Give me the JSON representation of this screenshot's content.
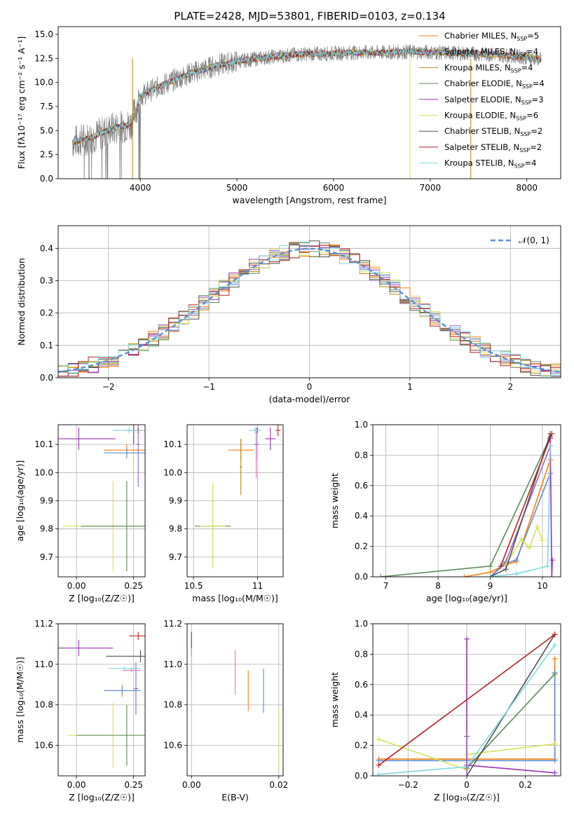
{
  "figure_title": "PLATE=2428, MJD=53801, FIBERID=0103, z=0.134",
  "models": [
    {
      "label": "Chabrier MILES, N",
      "sub": "SSP",
      "n": "=5",
      "color": "#ff7f0e"
    },
    {
      "label": "Salpeter MILES, N",
      "sub": "SSP",
      "n": "=4",
      "color": "#9467bd"
    },
    {
      "label": "Kroupa MILES, N",
      "sub": "SSP",
      "n": "=4",
      "color": "#b8860b"
    },
    {
      "label": "Chabrier ELODIE, N",
      "sub": "SSP",
      "n": "=4",
      "color": "#5a8a5a"
    },
    {
      "label": "Salpeter ELODIE, N",
      "sub": "SSP",
      "n": "=3",
      "color": "#9b30b0"
    },
    {
      "label": "Kroupa ELODIE, N",
      "sub": "SSP",
      "n": "=6",
      "color": "#d4e157"
    },
    {
      "label": "Chabrier STELIB, N",
      "sub": "SSP",
      "n": "=2",
      "color": "#505050"
    },
    {
      "label": "Salpeter STELIB, N",
      "sub": "SSP",
      "n": "=2",
      "color": "#b22222"
    },
    {
      "label": "Kroupa STELIB, N",
      "sub": "SSP",
      "n": "=4",
      "color": "#7fd8e0"
    }
  ],
  "chart_data": [
    {
      "id": "spectrum",
      "type": "line",
      "xlabel": "wavelength [Angstrom, rest frame]",
      "ylabel": "Flux [fλ10⁻¹⁷ erg cm⁻² s⁻¹ A⁻¹]",
      "xlim": [
        3150,
        8350
      ],
      "ylim": [
        0,
        15.8
      ],
      "xticks": [
        4000,
        5000,
        6000,
        7000,
        8000
      ],
      "yticks": [
        0.0,
        2.5,
        5.0,
        7.5,
        10.0,
        12.5,
        15.0
      ],
      "grid": false,
      "legend": "top-right",
      "data_x_range": [
        3300,
        8150
      ],
      "continuum": {
        "x": [
          3300,
          3500,
          3700,
          3900,
          4000,
          4200,
          4500,
          4800,
          5000,
          5300,
          5600,
          5900,
          6200,
          6500,
          6800,
          7100,
          7400,
          7700,
          8000,
          8150
        ],
        "y": [
          3.8,
          4.3,
          5.2,
          5.6,
          8.6,
          9.6,
          10.9,
          11.8,
          12.2,
          12.6,
          12.9,
          13.0,
          13.1,
          13.1,
          13.2,
          13.1,
          13.0,
          12.9,
          12.6,
          12.4
        ]
      }
    },
    {
      "id": "residuals",
      "type": "histogram",
      "xlabel": "(data-model)/error",
      "ylabel": "Normed distribution",
      "xlim": [
        -2.5,
        2.5
      ],
      "ylim": [
        0,
        0.47
      ],
      "xticks": [
        -2,
        -1,
        0,
        1,
        2
      ],
      "yticks": [
        0.0,
        0.1,
        0.2,
        0.3,
        0.4
      ],
      "grid": true,
      "legend": "top-right",
      "reference_label": "𝒩(0, 1)",
      "reference_color": "#5b8fd0",
      "bin_width": 0.1
    },
    {
      "id": "age_vs_Z",
      "type": "errorbar",
      "xlabel": "Z [log₁₀(Z/Z☉)]",
      "ylabel": "age  [log₁₀(age/yr)]",
      "xlim": [
        -0.08,
        0.3
      ],
      "ylim": [
        9.63,
        10.17
      ],
      "xticks": [
        0.0,
        0.25
      ],
      "xticklabels": [
        "0.00",
        "0.25"
      ],
      "yticks": [
        9.7,
        9.8,
        9.9,
        10.0,
        10.1
      ],
      "grid": true,
      "points": [
        {
          "x": 0.22,
          "y": 10.08,
          "xerr": 0.1,
          "yerr": 0.02,
          "color": "#ff7f0e"
        },
        {
          "x": 0.27,
          "y": 10.1,
          "xerr": 0.01,
          "yerr": 0.15,
          "color": "#9467bd"
        },
        {
          "x": 0.22,
          "y": 10.07,
          "xerr": 0.1,
          "yerr": 0.02,
          "color": "#5b8fd0"
        },
        {
          "x": 0.16,
          "y": 9.81,
          "xerr": 0.22,
          "yerr": 0.16,
          "color": "#d4e157"
        },
        {
          "x": 0.22,
          "y": 9.81,
          "xerr": 0.2,
          "yerr": 0.16,
          "color": "#5a8a5a"
        },
        {
          "x": 0.01,
          "y": 10.12,
          "xerr": 0.16,
          "yerr": 0.04,
          "color": "#9b30b0"
        },
        {
          "x": 0.25,
          "y": 10.15,
          "xerr": 0.04,
          "yerr": 0.05,
          "color": "#505050"
        },
        {
          "x": 0.27,
          "y": 10.15,
          "xerr": 0.04,
          "yerr": 0.01,
          "color": "#b22222"
        },
        {
          "x": 0.23,
          "y": 10.15,
          "xerr": 0.07,
          "yerr": 0.01,
          "color": "#7fd8e0"
        }
      ]
    },
    {
      "id": "age_vs_mass",
      "type": "errorbar",
      "xlabel": "mass [log₁₀(M/M☉)]",
      "ylabel": "",
      "xlim": [
        10.45,
        11.2
      ],
      "ylim": [
        9.63,
        10.17
      ],
      "xticks": [
        10.5,
        11.0
      ],
      "yticks": [
        9.7,
        9.8,
        9.9,
        10.0,
        10.1
      ],
      "grid": true,
      "points": [
        {
          "x": 10.87,
          "y": 10.08,
          "xerr": 0.1,
          "yerr": 0.04,
          "color": "#ff7f0e"
        },
        {
          "x": 10.99,
          "y": 10.1,
          "xerr": 0.02,
          "yerr": 0.06,
          "color": "#9467bd"
        },
        {
          "x": 10.87,
          "y": 10.02,
          "xerr": 0.01,
          "yerr": 0.1,
          "color": "#b8860b"
        },
        {
          "x": 10.65,
          "y": 9.81,
          "xerr": 0.14,
          "yerr": 0.15,
          "color": "#5a8a5a"
        },
        {
          "x": 11.1,
          "y": 10.12,
          "xerr": 0.04,
          "yerr": 0.04,
          "color": "#9b30b0"
        },
        {
          "x": 10.65,
          "y": 9.81,
          "xerr": 0.1,
          "yerr": 0.15,
          "color": "#d4e157"
        },
        {
          "x": 11.0,
          "y": 10.15,
          "xerr": 0.02,
          "yerr": 0.01,
          "color": "#505050"
        },
        {
          "x": 11.16,
          "y": 10.15,
          "xerr": 0.02,
          "yerr": 0.02,
          "color": "#b22222"
        },
        {
          "x": 10.98,
          "y": 10.15,
          "xerr": 0.05,
          "yerr": 0.01,
          "color": "#7fd8e0"
        },
        {
          "x": 10.99,
          "y": 10.04,
          "xerr": 0.0,
          "yerr": 0.06,
          "color": "#e377c2"
        }
      ]
    },
    {
      "id": "weight_vs_age",
      "type": "line",
      "xlabel": "age  [log₁₀(age/yr)]",
      "ylabel": "mass weight",
      "xlim": [
        6.75,
        10.35
      ],
      "ylim": [
        0,
        1.0
      ],
      "xticks": [
        7,
        8,
        9,
        10
      ],
      "yticks": [
        0.0,
        0.2,
        0.4,
        0.6,
        0.8,
        1.0
      ],
      "grid": true,
      "series": [
        {
          "color": "#ff7f0e",
          "x": [
            8.5,
            9.0,
            9.3,
            9.5,
            10.15
          ],
          "y": [
            0.0,
            0.03,
            0.08,
            0.1,
            0.77
          ]
        },
        {
          "color": "#9467bd",
          "x": [
            9.0,
            9.3,
            10.15
          ],
          "y": [
            0.0,
            0.1,
            0.86
          ]
        },
        {
          "color": "#5b8fd0",
          "x": [
            9.0,
            9.3,
            9.5,
            10.15
          ],
          "y": [
            0.0,
            0.09,
            0.11,
            0.68
          ]
        },
        {
          "color": "#d4e157",
          "x": [
            9.3,
            9.6,
            9.75,
            9.9,
            10.0
          ],
          "y": [
            0.08,
            0.25,
            0.19,
            0.33,
            0.24
          ]
        },
        {
          "color": "#5a8a5a",
          "x": [
            6.9,
            9.0,
            10.15
          ],
          "y": [
            0.0,
            0.07,
            0.92
          ]
        },
        {
          "color": "#9b30b0",
          "x": [
            10.15,
            10.18,
            10.19
          ],
          "y": [
            0.91,
            0.0,
            0.11
          ]
        },
        {
          "color": "#505050",
          "x": [
            9.0,
            9.3,
            10.15
          ],
          "y": [
            0.0,
            0.05,
            0.94
          ]
        },
        {
          "color": "#b22222",
          "x": [
            9.2,
            10.18
          ],
          "y": [
            0.07,
            0.94
          ]
        },
        {
          "color": "#7fd8e0",
          "x": [
            9.0,
            9.5,
            10.1,
            10.15
          ],
          "y": [
            0.0,
            0.02,
            0.07,
            0.86
          ]
        }
      ]
    },
    {
      "id": "mass_vs_Z",
      "type": "errorbar",
      "xlabel": "Z [log₁₀(Z/Z☉)]",
      "ylabel": "mass [log₁₀(M/M☉)]",
      "xlim": [
        -0.08,
        0.3
      ],
      "ylim": [
        10.45,
        11.2
      ],
      "xticks": [
        0.0,
        0.25
      ],
      "xticklabels": [
        "0.00",
        "0.25"
      ],
      "yticks": [
        10.6,
        10.8,
        11.0,
        11.2
      ],
      "grid": true,
      "points": [
        {
          "x": 0.2,
          "y": 10.87,
          "xerr": 0.08,
          "yerr": 0.03,
          "color": "#ff7f0e"
        },
        {
          "x": 0.26,
          "y": 10.88,
          "xerr": 0.01,
          "yerr": 0.13,
          "color": "#9467bd"
        },
        {
          "x": 0.2,
          "y": 10.87,
          "xerr": 0.08,
          "yerr": 0.02,
          "color": "#5b8fd0"
        },
        {
          "x": 0.16,
          "y": 10.65,
          "xerr": 0.2,
          "yerr": 0.16,
          "color": "#d4e157"
        },
        {
          "x": 0.22,
          "y": 10.65,
          "xerr": 0.22,
          "yerr": 0.15,
          "color": "#5a8a5a"
        },
        {
          "x": 0.01,
          "y": 11.08,
          "xerr": 0.15,
          "yerr": 0.04,
          "color": "#9b30b0"
        },
        {
          "x": 0.28,
          "y": 11.04,
          "xerr": 0.15,
          "yerr": 0.03,
          "color": "#505050"
        },
        {
          "x": 0.27,
          "y": 11.14,
          "xerr": 0.04,
          "yerr": 0.02,
          "color": "#b22222"
        },
        {
          "x": 0.21,
          "y": 10.98,
          "xerr": 0.07,
          "yerr": 0.01,
          "color": "#7fd8e0"
        },
        {
          "x": 0.24,
          "y": 10.97,
          "xerr": 0.04,
          "yerr": 0.01,
          "color": "#e377c2"
        }
      ]
    },
    {
      "id": "mass_vs_EBV",
      "type": "errorbar",
      "xlabel": "E(B-V)",
      "ylabel": "",
      "xlim": [
        -0.001,
        0.021
      ],
      "ylim": [
        10.45,
        11.2
      ],
      "xticks": [
        0.0,
        0.02
      ],
      "xticklabels": [
        "0.00",
        "0.02"
      ],
      "yticks": [
        10.6,
        10.8,
        11.0,
        11.2
      ],
      "grid": true,
      "points": [
        {
          "x": 0.0,
          "y": 11.1,
          "xerr": 0.0,
          "yerr": 0.06,
          "color": "#b22222"
        },
        {
          "x": 0.0,
          "y": 11.0,
          "xerr": 0.0,
          "yerr": 0.08,
          "color": "#7fd8e0"
        },
        {
          "x": 0.01,
          "y": 10.96,
          "xerr": 0.0,
          "yerr": 0.11,
          "color": "#e377c2"
        },
        {
          "x": 0.013,
          "y": 10.87,
          "xerr": 0.0,
          "yerr": 0.1,
          "color": "#ff7f0e"
        },
        {
          "x": 0.0165,
          "y": 10.87,
          "xerr": 0.0,
          "yerr": 0.11,
          "color": "#5b8fd0"
        },
        {
          "x": 0.02,
          "y": 10.63,
          "xerr": 0.0,
          "yerr": 0.15,
          "color": "#d4e157"
        }
      ]
    },
    {
      "id": "weight_vs_Z",
      "type": "line",
      "xlabel": "Z [log₁₀(Z/Z☉)]",
      "ylabel": "mass weight",
      "xlim": [
        -0.32,
        0.32
      ],
      "ylim": [
        0,
        1.0
      ],
      "xticks": [
        -0.2,
        0.0,
        0.2
      ],
      "yticks": [
        0.0,
        0.2,
        0.4,
        0.6,
        0.8,
        1.0
      ],
      "grid": true,
      "series": [
        {
          "color": "#ff7f0e",
          "x": [
            -0.3,
            0.3,
            0.3
          ],
          "y": [
            0.11,
            0.11,
            0.77
          ]
        },
        {
          "color": "#5b8fd0",
          "x": [
            -0.3,
            0.3,
            0.3
          ],
          "y": [
            0.1,
            0.1,
            0.68
          ]
        },
        {
          "color": "#d4e157",
          "x": [
            -0.3,
            0.0,
            0.0,
            0.3
          ],
          "y": [
            0.24,
            0.04,
            0.14,
            0.21
          ]
        },
        {
          "color": "#5a8a5a",
          "x": [
            0.0,
            0.3
          ],
          "y": [
            0.05,
            0.67
          ]
        },
        {
          "color": "#9b30b0",
          "x": [
            0.0,
            0.0,
            0.0,
            0.3
          ],
          "y": [
            0.9,
            0.26,
            0.07,
            0.02
          ]
        },
        {
          "color": "#505050",
          "x": [
            0.0,
            0.3
          ],
          "y": [
            0.0,
            0.93
          ]
        },
        {
          "color": "#b22222",
          "x": [
            -0.3,
            0.3
          ],
          "y": [
            0.07,
            0.93
          ]
        },
        {
          "color": "#7fd8e0",
          "x": [
            -0.3,
            0.0,
            0.3
          ],
          "y": [
            0.01,
            0.06,
            0.86
          ]
        },
        {
          "color": "#9467bd",
          "x": [
            0.0,
            0.0
          ],
          "y": [
            0.0,
            0.26
          ]
        }
      ]
    }
  ]
}
